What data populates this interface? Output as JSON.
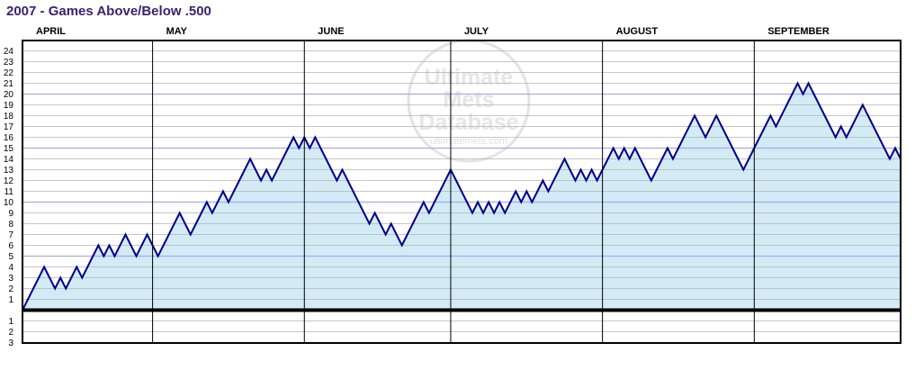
{
  "title": "2007 - Games Above/Below .500",
  "watermark": {
    "line1": "Ultimate",
    "line2": "Mets",
    "line3": "Database",
    "url": "ultimatemets.com"
  },
  "colors": {
    "line": "#00008b",
    "fill": "#d2ebf5",
    "grid": "#b4b4b4",
    "grid_accent": "#a8a8f0",
    "title": "#3d1f6e"
  },
  "chart_data": {
    "type": "area",
    "title": "2007 - Games Above/Below .500",
    "xlabel": "",
    "ylabel": "",
    "ylim": [
      -3,
      24
    ],
    "y_ticks_above": [
      "1",
      "2",
      "3",
      "4",
      "5",
      "6",
      "7",
      "8",
      "9",
      "10",
      "11",
      "12",
      "13",
      "14",
      "15",
      "16",
      "17",
      "18",
      "19",
      "20",
      "21",
      "22",
      "23",
      "24"
    ],
    "y_ticks_below": [
      "1",
      "2",
      "3"
    ],
    "month_labels": [
      "APRIL",
      "MAY",
      "JUNE",
      "JULY",
      "AUGUST",
      "SEPTEMBER"
    ],
    "games_per_month": [
      24,
      28,
      27,
      28,
      28,
      27
    ],
    "accent_gridlines": [
      5,
      10,
      15,
      20
    ],
    "grid": true,
    "series": [
      {
        "values": [
          1,
          2,
          3,
          4,
          3,
          2,
          3,
          2,
          3,
          4,
          3,
          4,
          5,
          6,
          5,
          6,
          5,
          6,
          7,
          6,
          5,
          6,
          7,
          6,
          5,
          6,
          7,
          8,
          9,
          8,
          7,
          8,
          9,
          10,
          9,
          10,
          11,
          10,
          11,
          12,
          13,
          14,
          13,
          12,
          13,
          12,
          13,
          14,
          15,
          16,
          15,
          16,
          15,
          16,
          15,
          14,
          13,
          12,
          13,
          12,
          11,
          10,
          9,
          8,
          9,
          8,
          7,
          8,
          7,
          6,
          7,
          8,
          9,
          10,
          9,
          10,
          11,
          12,
          13,
          12,
          11,
          10,
          9,
          10,
          9,
          10,
          9,
          10,
          9,
          10,
          11,
          10,
          11,
          10,
          11,
          12,
          11,
          12,
          13,
          14,
          13,
          12,
          13,
          12,
          13,
          12,
          13,
          14,
          15,
          14,
          15,
          14,
          15,
          14,
          13,
          12,
          13,
          14,
          15,
          14,
          15,
          16,
          17,
          18,
          17,
          16,
          17,
          18,
          17,
          16,
          15,
          14,
          13,
          14,
          15,
          16,
          17,
          18,
          17,
          18,
          19,
          20,
          21,
          20,
          21,
          20,
          19,
          18,
          17,
          16,
          17,
          16,
          17,
          18,
          19,
          18,
          17,
          16,
          15,
          14,
          15,
          14
        ]
      }
    ]
  }
}
